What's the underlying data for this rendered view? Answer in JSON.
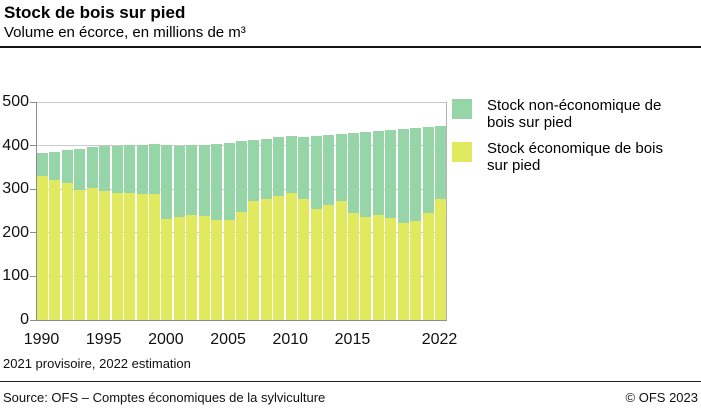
{
  "header": {
    "title": "Stock de bois sur pied",
    "subtitle": "Volume en écorce, en millions de m³"
  },
  "chart_data": {
    "type": "bar",
    "stacked": true,
    "title": "Stock de bois sur pied",
    "subtitle": "Volume en écorce, en millions de m³",
    "xlabel": "",
    "ylabel": "",
    "ylim": [
      0,
      500
    ],
    "yticks": [
      0,
      100,
      200,
      300,
      400,
      500
    ],
    "xtick_years": [
      1990,
      1995,
      2000,
      2005,
      2010,
      2015,
      2022
    ],
    "grid": "horizontal",
    "legend_position": "right",
    "categories": [
      1990,
      1991,
      1992,
      1993,
      1994,
      1995,
      1996,
      1997,
      1998,
      1999,
      2000,
      2001,
      2002,
      2003,
      2004,
      2005,
      2006,
      2007,
      2008,
      2009,
      2010,
      2011,
      2012,
      2013,
      2014,
      2015,
      2016,
      2017,
      2018,
      2019,
      2020,
      2021,
      2022
    ],
    "series": [
      {
        "name": "Stock économique de bois sur pied",
        "color": "#e1e95e",
        "values": [
          331,
          322,
          315,
          299,
          303,
          295,
          291,
          291,
          288,
          289,
          231,
          236,
          241,
          238,
          229,
          230,
          248,
          272,
          278,
          284,
          291,
          277,
          254,
          264,
          274,
          245,
          236,
          242,
          234,
          222,
          226,
          245,
          278
        ]
      },
      {
        "name": "Stock non-économique de bois sur pied",
        "color": "#95d5a7",
        "values": [
          51,
          64,
          75,
          94,
          93,
          103,
          109,
          110,
          114,
          114,
          170,
          164,
          160,
          164,
          175,
          177,
          162,
          141,
          138,
          135,
          131,
          143,
          168,
          160,
          153,
          184,
          195,
          191,
          201,
          215,
          214,
          198,
          168
        ]
      }
    ],
    "totals": [
      382,
      386,
      390,
      393,
      396,
      398,
      400,
      401,
      402,
      403,
      401,
      400,
      401,
      402,
      404,
      407,
      410,
      413,
      416,
      419,
      422,
      420,
      422,
      424,
      427,
      429,
      431,
      433,
      435,
      437,
      440,
      443,
      446
    ]
  },
  "legend": {
    "items": [
      {
        "label": "Stock non-économique de bois sur pied",
        "color": "#95d5a7"
      },
      {
        "label": "Stock économique de bois sur pied",
        "color": "#e1e95e"
      }
    ]
  },
  "footnote": "2021 provisoire, 2022 estimation",
  "footer": {
    "source": "Source: OFS – Comptes économiques de la sylviculture",
    "copyright": "© OFS 2023"
  },
  "colors": {
    "economic": "#e1e95e",
    "non_economic": "#95d5a7",
    "gridline": "#c9c9c9",
    "axis": "#8c8c8c",
    "divider": "#141414"
  }
}
